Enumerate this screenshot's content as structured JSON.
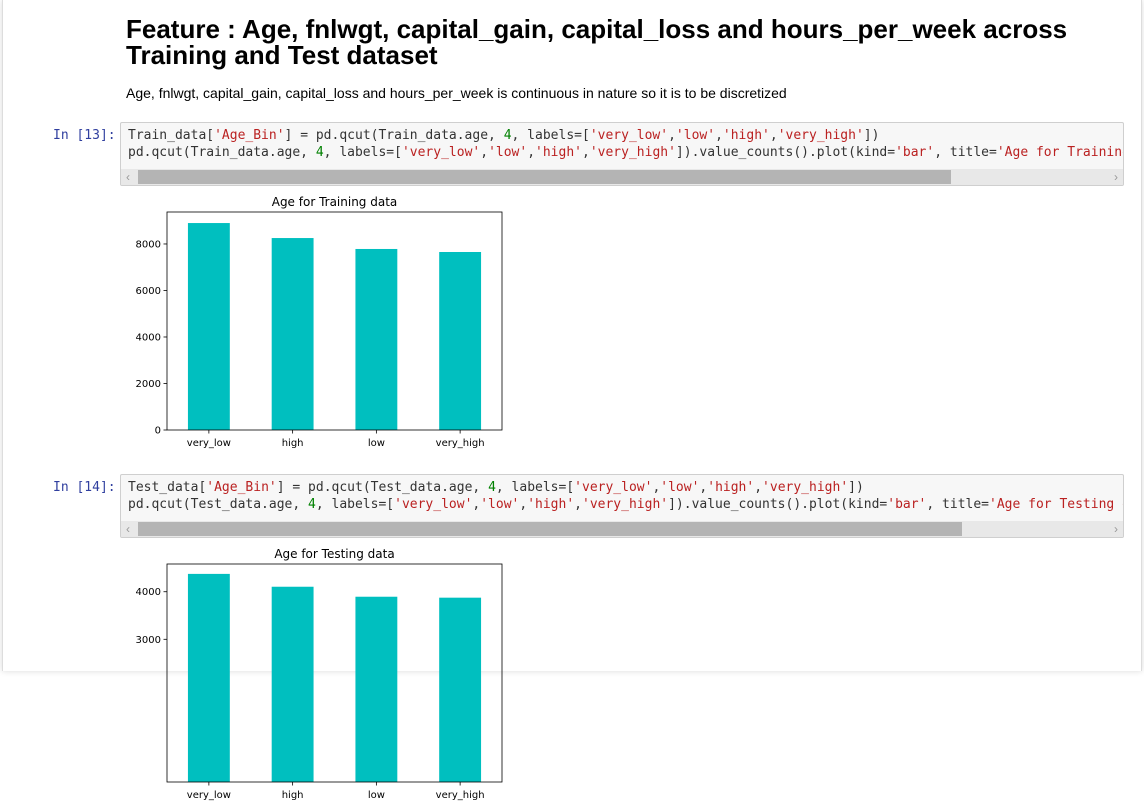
{
  "heading": "Feature : Age, fnlwgt, capital_gain, capital_loss and hours_per_week across Training and Test dataset",
  "text": "Age, fnlwgt, capital_gain, capital_loss and hours_per_week is continuous in nature so it is to be discretized",
  "cells": [
    {
      "prompt": "In [13]:",
      "code": [
        [
          "Train_data[",
          "'Age_Bin'",
          "] = pd.qcut(Train_data.age, ",
          "4",
          ", labels=[",
          "'very_low'",
          ",",
          "'low'",
          ",",
          "'high'",
          ",",
          "'very_high'",
          "])"
        ],
        [
          "pd.qcut(Train_data.age, ",
          "4",
          ", labels=[",
          "'very_low'",
          ",",
          "'low'",
          ",",
          "'high'",
          ",",
          "'very_high'",
          "]).value_counts().plot(kind=",
          "'bar'",
          ", title=",
          "'Age for Training "
        ]
      ]
    },
    {
      "prompt": "In [14]:",
      "code": [
        [
          "Test_data[",
          "'Age_Bin'",
          "] = pd.qcut(Test_data.age, ",
          "4",
          ", labels=[",
          "'very_low'",
          ",",
          "'low'",
          ",",
          "'high'",
          ",",
          "'very_high'",
          "])"
        ],
        [
          "pd.qcut(Test_data.age, ",
          "4",
          ", labels=[",
          "'very_low'",
          ",",
          "'low'",
          ",",
          "'high'",
          ",",
          "'very_high'",
          "]).value_counts().plot(kind=",
          "'bar'",
          ", title=",
          "'Age for Testing da"
        ]
      ]
    }
  ],
  "chart_data": [
    {
      "type": "bar",
      "title": "Age for Training data",
      "categories": [
        "very_low",
        "high",
        "low",
        "very_high"
      ],
      "values": [
        8900,
        8255,
        7785,
        7655
      ],
      "color": "#00bfbf",
      "ylim": [
        0,
        9375
      ],
      "yticks": [
        0,
        2000,
        4000,
        6000,
        8000
      ]
    },
    {
      "type": "bar",
      "title": "Age for Testing data",
      "categories": [
        "very_low",
        "high",
        "low",
        "very_high"
      ],
      "values": [
        4375,
        4105,
        3895,
        3875
      ],
      "color": "#00bfbf",
      "ylim": [
        0,
        4583
      ],
      "yticks": [
        3000,
        4000
      ]
    }
  ]
}
